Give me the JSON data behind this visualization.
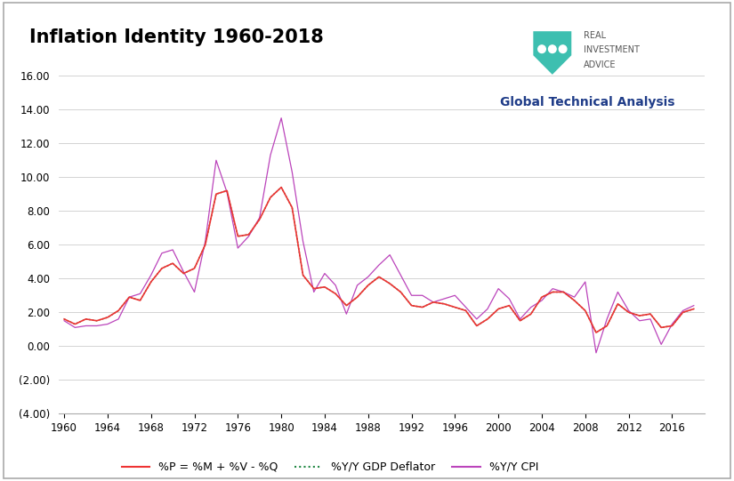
{
  "title": "Inflation Identity 1960-2018",
  "subtitle": "Global Technical Analysis",
  "ylim": [
    -4.0,
    16.5
  ],
  "xlim": [
    1959.5,
    2019.0
  ],
  "yticks": [
    -4.0,
    -2.0,
    0.0,
    2.0,
    4.0,
    6.0,
    8.0,
    10.0,
    12.0,
    14.0,
    16.0
  ],
  "ytick_labels": [
    "(4.00)",
    "(2.00)",
    "0.00",
    "2.00",
    "4.00",
    "6.00",
    "8.00",
    "10.00",
    "12.00",
    "14.00",
    "16.00"
  ],
  "xticks": [
    1960,
    1964,
    1968,
    1972,
    1976,
    1980,
    1984,
    1988,
    1992,
    1996,
    2000,
    2004,
    2008,
    2012,
    2016
  ],
  "line_p_color": "#EE3333",
  "line_gdp_color": "#228844",
  "line_cpi_color": "#BB44BB",
  "background_color": "#FFFFFF",
  "grid_color": "#CCCCCC",
  "title_color": "#000000",
  "subtitle_color": "#1F3C88",
  "legend_label_p": "%P = %M + %V - %Q",
  "legend_label_gdp": "%Y/Y GDP Deflator",
  "legend_label_cpi": "%Y/Y CPI",
  "logo_shield_color": "#3DBFB0",
  "logo_text_color": "#555555",
  "years": [
    1960,
    1961,
    1962,
    1963,
    1964,
    1965,
    1966,
    1967,
    1968,
    1969,
    1970,
    1971,
    1972,
    1973,
    1974,
    1975,
    1976,
    1977,
    1978,
    1979,
    1980,
    1981,
    1982,
    1983,
    1984,
    1985,
    1986,
    1987,
    1988,
    1989,
    1990,
    1991,
    1992,
    1993,
    1994,
    1995,
    1996,
    1997,
    1998,
    1999,
    2000,
    2001,
    2002,
    2003,
    2004,
    2005,
    2006,
    2007,
    2008,
    2009,
    2010,
    2011,
    2012,
    2013,
    2014,
    2015,
    2016,
    2017,
    2018
  ],
  "gdp_deflator": [
    1.6,
    1.3,
    1.6,
    1.5,
    1.7,
    2.1,
    2.9,
    2.7,
    3.8,
    4.6,
    4.9,
    4.3,
    4.6,
    6.0,
    9.0,
    9.2,
    6.5,
    6.6,
    7.5,
    8.8,
    9.4,
    8.2,
    4.2,
    3.4,
    3.5,
    3.1,
    2.4,
    2.9,
    3.6,
    4.1,
    3.7,
    3.2,
    2.4,
    2.3,
    2.6,
    2.5,
    2.3,
    2.1,
    1.2,
    1.6,
    2.2,
    2.4,
    1.5,
    1.9,
    2.9,
    3.2,
    3.2,
    2.7,
    2.1,
    0.8,
    1.2,
    2.5,
    2.0,
    1.8,
    1.9,
    1.1,
    1.2,
    2.0,
    2.2
  ],
  "cpi": [
    1.5,
    1.1,
    1.2,
    1.2,
    1.3,
    1.6,
    2.9,
    3.1,
    4.2,
    5.5,
    5.7,
    4.4,
    3.2,
    6.2,
    11.0,
    9.1,
    5.8,
    6.5,
    7.6,
    11.3,
    13.5,
    10.3,
    6.2,
    3.2,
    4.3,
    3.6,
    1.9,
    3.6,
    4.1,
    4.8,
    5.4,
    4.2,
    3.0,
    3.0,
    2.6,
    2.8,
    3.0,
    2.3,
    1.6,
    2.2,
    3.4,
    2.8,
    1.6,
    2.3,
    2.7,
    3.4,
    3.2,
    2.9,
    3.8,
    -0.4,
    1.6,
    3.2,
    2.1,
    1.5,
    1.6,
    0.1,
    1.3,
    2.1,
    2.4
  ],
  "p_series": [
    1.6,
    1.3,
    1.6,
    1.5,
    1.7,
    2.1,
    2.9,
    2.7,
    3.8,
    4.6,
    4.9,
    4.3,
    4.6,
    6.0,
    9.0,
    9.2,
    6.5,
    6.6,
    7.5,
    8.8,
    9.4,
    8.2,
    4.2,
    3.4,
    3.5,
    3.1,
    2.4,
    2.9,
    3.6,
    4.1,
    3.7,
    3.2,
    2.4,
    2.3,
    2.6,
    2.5,
    2.3,
    2.1,
    1.2,
    1.6,
    2.2,
    2.4,
    1.5,
    1.9,
    2.9,
    3.2,
    3.2,
    2.7,
    2.1,
    0.8,
    1.2,
    2.5,
    2.0,
    1.8,
    1.9,
    1.1,
    1.2,
    2.0,
    2.2
  ]
}
